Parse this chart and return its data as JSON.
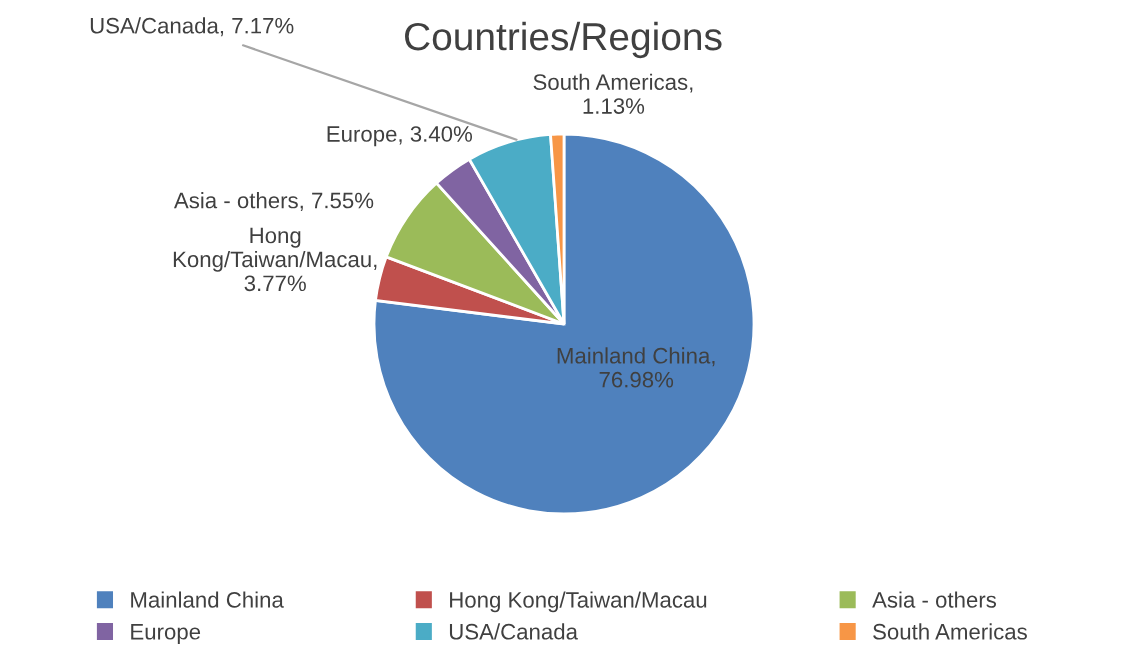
{
  "chart_data": {
    "type": "pie",
    "title": "Countries/Regions",
    "categories": [
      "Mainland China",
      "Hong Kong/Taiwan/Macau",
      "Asia - others",
      "Europe",
      "USA/Canada",
      "South Americas"
    ],
    "values": [
      76.98,
      3.77,
      7.55,
      3.4,
      7.17,
      1.13
    ],
    "colors": [
      "#4f81bd",
      "#c0504d",
      "#9bbb59",
      "#8064a2",
      "#4bacc6",
      "#f79646"
    ],
    "value_labels": [
      "Mainland China, 76.98%",
      "Hong Kong/Taiwan/Macau, 3.77%",
      "Asia - others, 7.55%",
      "Europe, 3.40%",
      "USA/Canada, 7.17%",
      "South Americas, 1.13%"
    ],
    "legend": "bottom"
  }
}
